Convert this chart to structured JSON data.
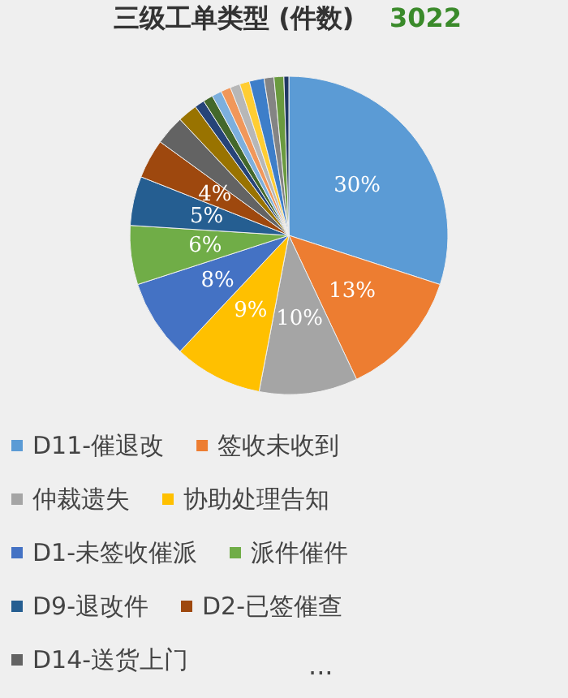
{
  "chart_data": {
    "type": "pie",
    "title": "三级工单类型 (件数)",
    "annotations": [
      "3022",
      "..."
    ],
    "categories": [
      "D11-催退改",
      "签收未收到",
      "仲裁遗失",
      "协助处理告知",
      "D1-未签收催派",
      "派件催件",
      "D9-退改件",
      "D2-已签催查",
      "D14-送货上门",
      null,
      null,
      null,
      null,
      null,
      null,
      null,
      null,
      null,
      null,
      null
    ],
    "values": [
      30,
      13,
      10,
      9,
      8,
      6,
      5,
      4,
      3,
      2,
      1,
      1,
      1,
      1,
      1,
      1,
      1.5,
      1,
      1,
      0.5
    ],
    "colors": [
      "#5b9bd5",
      "#ed7d31",
      "#a5a5a5",
      "#ffc000",
      "#4472c4",
      "#70ad47",
      "#255e91",
      "#9e480e",
      "#636363",
      "#997300",
      "#264478",
      "#43682b",
      "#7cafdd",
      "#f1975a",
      "#b7b7b7",
      "#ffcd33",
      "#3d7ec9",
      "#848484",
      "#6a9a3f",
      "#1f3864"
    ],
    "value_labels": [
      "30%",
      "13%",
      "10%",
      "9%",
      "8%",
      "6%",
      "5%",
      "4%",
      null,
      null,
      null,
      null,
      null,
      null,
      null,
      null,
      null,
      null,
      null,
      null
    ],
    "legend": "bottom"
  }
}
